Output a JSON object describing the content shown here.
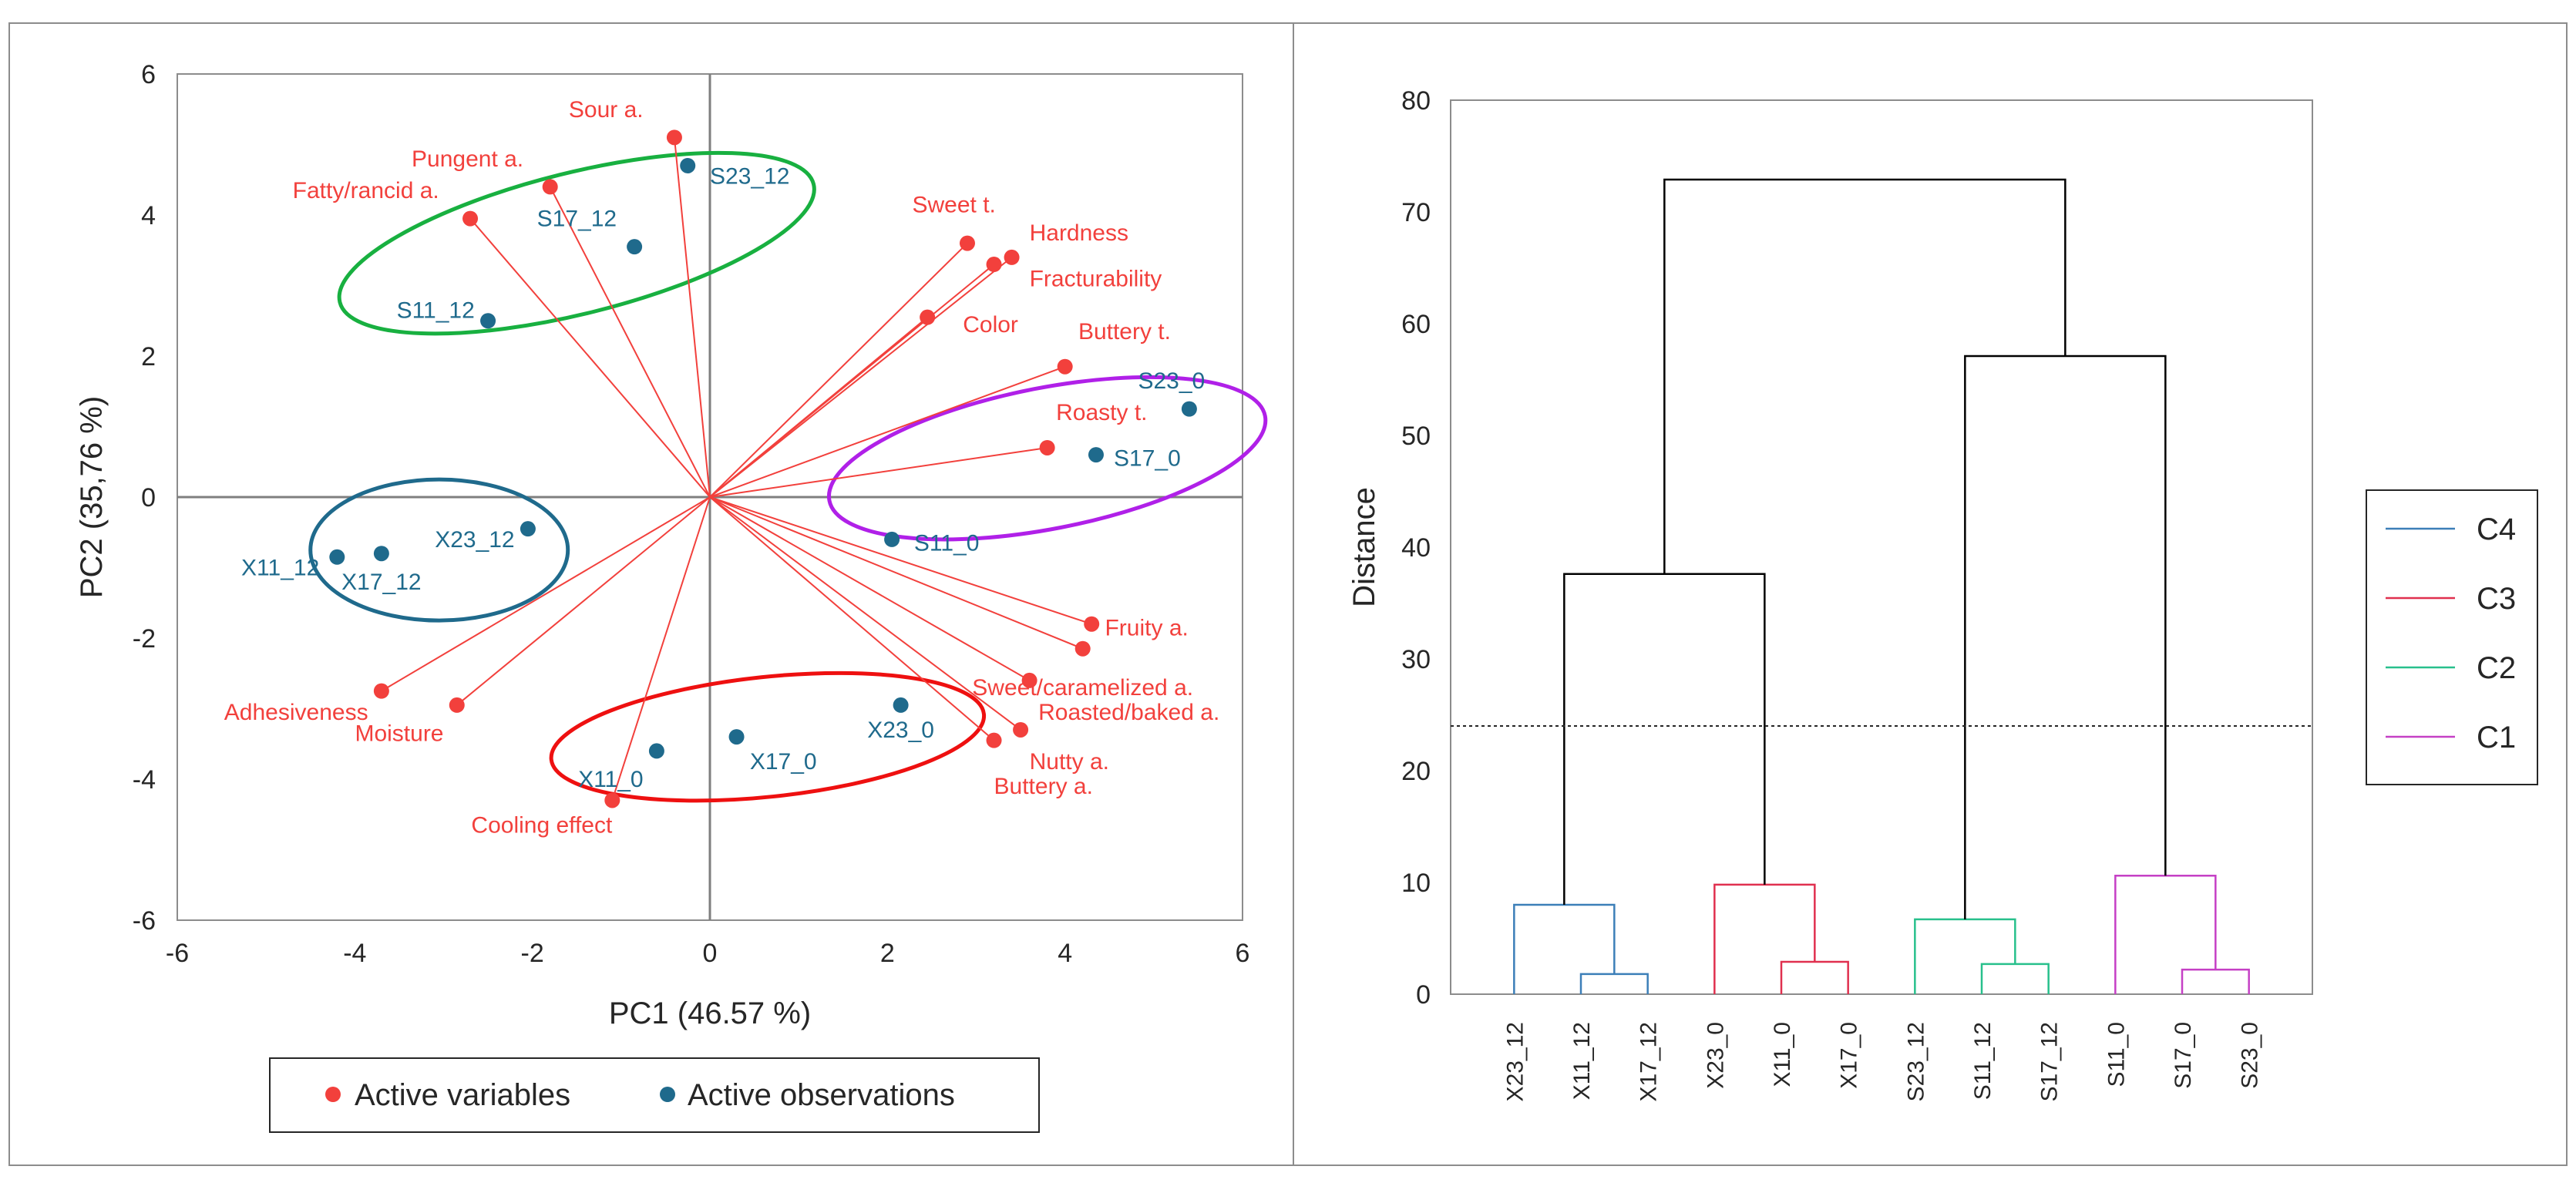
{
  "colors": {
    "variable": "#f2403c",
    "observation": "#1f6a8c",
    "axis_line": "#7f7f7f",
    "text": "#262626",
    "cluster_c4": "#3c7fb8",
    "cluster_c3": "#e0304f",
    "cluster_c2": "#28c08c",
    "cluster_c1": "#c540c5",
    "ellipse_green": "#18b040",
    "ellipse_magenta": "#b020e8",
    "ellipse_blue": "#1f6a8c",
    "ellipse_red": "#ee1010"
  },
  "chart_data": [
    {
      "type": "scatter",
      "subtype": "pca-biplot",
      "xlabel": "PC1 (46.57 %)",
      "ylabel": "PC2 (35,76 %)",
      "xlim": [
        -6,
        6
      ],
      "ylim": [
        -6,
        6
      ],
      "xticks": [
        -6,
        -4,
        -2,
        0,
        2,
        4,
        6
      ],
      "yticks": [
        -6,
        -4,
        -2,
        0,
        2,
        4,
        6
      ],
      "grid": false,
      "legend": {
        "placement": "bottom",
        "entries": [
          "Active variables",
          "Active observations"
        ]
      },
      "variables": [
        {
          "label": "Sour a.",
          "x": -0.4,
          "y": 5.1,
          "anchor": "end",
          "dx": -0.35,
          "dy": 0.4
        },
        {
          "label": "Pungent a.",
          "x": -1.8,
          "y": 4.4,
          "anchor": "end",
          "dx": -0.3,
          "dy": 0.4
        },
        {
          "label": "Fatty/rancid a.",
          "x": -2.7,
          "y": 3.95,
          "anchor": "end",
          "dx": -0.35,
          "dy": 0.4
        },
        {
          "label": "Sweet t.",
          "x": 2.9,
          "y": 3.6,
          "anchor": "middle",
          "dx": -0.15,
          "dy": 0.55
        },
        {
          "label": "Hardness",
          "x": 3.4,
          "y": 3.4,
          "anchor": "start",
          "dx": 0.2,
          "dy": 0.35
        },
        {
          "label": "Fracturability",
          "x": 3.2,
          "y": 3.3,
          "anchor": "start",
          "dx": 0.4,
          "dy": -0.2
        },
        {
          "label": "Color",
          "x": 2.45,
          "y": 2.55,
          "anchor": "start",
          "dx": 0.4,
          "dy": -0.1
        },
        {
          "label": "Buttery t.",
          "x": 4.0,
          "y": 1.85,
          "anchor": "start",
          "dx": 0.15,
          "dy": 0.5
        },
        {
          "label": "Roasty t.",
          "x": 3.8,
          "y": 0.7,
          "anchor": "start",
          "dx": 0.1,
          "dy": 0.5
        },
        {
          "label": "Fruity a.",
          "x": 4.3,
          "y": -1.8,
          "anchor": "start",
          "dx": 0.15,
          "dy": -0.05
        },
        {
          "label": "Sweet/caramelized a.",
          "x": 4.2,
          "y": -2.15,
          "anchor": "middle",
          "dx": 0.0,
          "dy": -0.55
        },
        {
          "label": "Roasted/baked a.",
          "x": 3.6,
          "y": -2.6,
          "anchor": "start",
          "dx": 0.1,
          "dy": -0.45
        },
        {
          "label": "Nutty a.",
          "x": 3.5,
          "y": -3.3,
          "anchor": "start",
          "dx": 0.1,
          "dy": -0.45
        },
        {
          "label": "Buttery a.",
          "x": 3.2,
          "y": -3.45,
          "anchor": "start",
          "dx": 0.0,
          "dy": -0.65
        },
        {
          "label": "Adhesiveness",
          "x": -3.7,
          "y": -2.75,
          "anchor": "end",
          "dx": -0.15,
          "dy": -0.3
        },
        {
          "label": "Moisture",
          "x": -2.85,
          "y": -2.95,
          "anchor": "end",
          "dx": -0.15,
          "dy": -0.4
        },
        {
          "label": "Cooling effect",
          "x": -1.1,
          "y": -4.3,
          "anchor": "end",
          "dx": 0.0,
          "dy": -0.35
        }
      ],
      "observations": [
        {
          "label": "S23_12",
          "x": -0.25,
          "y": 4.7,
          "anchor": "start",
          "dx": 0.25,
          "dy": -0.15
        },
        {
          "label": "S17_12",
          "x": -0.85,
          "y": 3.55,
          "anchor": "end",
          "dx": -0.2,
          "dy": 0.4
        },
        {
          "label": "S11_12",
          "x": -2.5,
          "y": 2.5,
          "anchor": "end",
          "dx": -0.15,
          "dy": 0.15
        },
        {
          "label": "S23_0",
          "x": 5.4,
          "y": 1.25,
          "anchor": "middle",
          "dx": -0.2,
          "dy": 0.4
        },
        {
          "label": "S17_0",
          "x": 4.35,
          "y": 0.6,
          "anchor": "start",
          "dx": 0.2,
          "dy": -0.05
        },
        {
          "label": "S11_0",
          "x": 2.05,
          "y": -0.6,
          "anchor": "start",
          "dx": 0.25,
          "dy": -0.05
        },
        {
          "label": "X23_12",
          "x": -2.05,
          "y": -0.45,
          "anchor": "end",
          "dx": -0.15,
          "dy": -0.15
        },
        {
          "label": "X17_12",
          "x": -3.7,
          "y": -0.8,
          "anchor": "middle",
          "dx": 0.0,
          "dy": -0.4
        },
        {
          "label": "X11_12",
          "x": -4.2,
          "y": -0.85,
          "anchor": "end",
          "dx": -0.2,
          "dy": -0.15
        },
        {
          "label": "X23_0",
          "x": 2.15,
          "y": -2.95,
          "anchor": "middle",
          "dx": 0.0,
          "dy": -0.35
        },
        {
          "label": "X17_0",
          "x": 0.3,
          "y": -3.4,
          "anchor": "start",
          "dx": 0.15,
          "dy": -0.35
        },
        {
          "label": "X11_0",
          "x": -0.6,
          "y": -3.6,
          "anchor": "end",
          "dx": -0.15,
          "dy": -0.4
        }
      ],
      "groups": [
        {
          "name": "green-group",
          "color_key": "ellipse_green",
          "cx": -1.5,
          "cy": 3.6,
          "rx": 5.5,
          "ry": 1.0,
          "angle_deg": 14
        },
        {
          "name": "magenta-group",
          "color_key": "ellipse_magenta",
          "cx": 3.8,
          "cy": 0.55,
          "rx": 5.0,
          "ry": 1.0,
          "angle_deg": 11
        },
        {
          "name": "blue-group",
          "color_key": "ellipse_blue",
          "cx": -3.05,
          "cy": -0.75,
          "rx": 2.9,
          "ry": 1.0,
          "angle_deg": 0
        },
        {
          "name": "red-group",
          "color_key": "ellipse_red",
          "cx": 0.65,
          "cy": -3.4,
          "rx": 4.9,
          "ry": 0.85,
          "angle_deg": 6
        }
      ]
    },
    {
      "type": "dendrogram",
      "ylabel": "Distance",
      "ylim": [
        0,
        80
      ],
      "yticks": [
        0,
        10,
        20,
        30,
        40,
        50,
        60,
        70,
        80
      ],
      "cut_height": 24,
      "leaves": [
        "X23_12",
        "X11_12",
        "X17_12",
        "X23_0",
        "X11_0",
        "X17_0",
        "S23_12",
        "S11_12",
        "S17_12",
        "S11_0",
        "S17_0",
        "S23_0"
      ],
      "merges": [
        {
          "left": {
            "leaf": 1
          },
          "right": {
            "leaf": 2
          },
          "height": 1.8,
          "color": "c4"
        },
        {
          "left": {
            "leaf": 0
          },
          "right": {
            "merge": 0
          },
          "height": 8.0,
          "color": "c4"
        },
        {
          "left": {
            "leaf": 4
          },
          "right": {
            "leaf": 5
          },
          "height": 2.9,
          "color": "c3"
        },
        {
          "left": {
            "leaf": 3
          },
          "right": {
            "merge": 2
          },
          "height": 9.8,
          "color": "c3"
        },
        {
          "left": {
            "leaf": 7
          },
          "right": {
            "leaf": 8
          },
          "height": 2.7,
          "color": "c2"
        },
        {
          "left": {
            "leaf": 6
          },
          "right": {
            "merge": 4
          },
          "height": 6.7,
          "color": "c2"
        },
        {
          "left": {
            "leaf": 10
          },
          "right": {
            "leaf": 11
          },
          "height": 2.2,
          "color": "c1"
        },
        {
          "left": {
            "leaf": 9
          },
          "right": {
            "merge": 6
          },
          "height": 10.6,
          "color": "c1"
        },
        {
          "left": {
            "merge": 1
          },
          "right": {
            "merge": 3
          },
          "height": 37.6,
          "color": "link"
        },
        {
          "left": {
            "merge": 5
          },
          "right": {
            "merge": 7
          },
          "height": 57.1,
          "color": "link"
        },
        {
          "left": {
            "merge": 8
          },
          "right": {
            "merge": 9
          },
          "height": 72.9,
          "color": "link"
        }
      ],
      "legend": {
        "placement": "right",
        "entries": [
          {
            "label": "C4",
            "color_key": "cluster_c4"
          },
          {
            "label": "C3",
            "color_key": "cluster_c3"
          },
          {
            "label": "C2",
            "color_key": "cluster_c2"
          },
          {
            "label": "C1",
            "color_key": "cluster_c1"
          }
        ]
      }
    }
  ]
}
